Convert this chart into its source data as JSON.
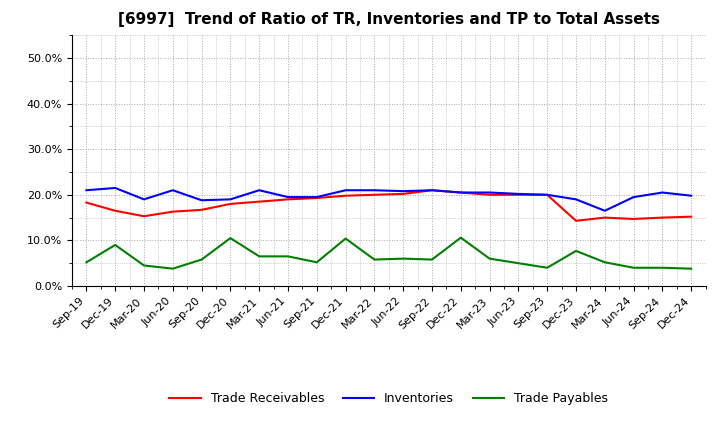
{
  "title": "[6997]  Trend of Ratio of TR, Inventories and TP to Total Assets",
  "x_labels": [
    "Sep-19",
    "Dec-19",
    "Mar-20",
    "Jun-20",
    "Sep-20",
    "Dec-20",
    "Mar-21",
    "Jun-21",
    "Sep-21",
    "Dec-21",
    "Mar-22",
    "Jun-22",
    "Sep-22",
    "Dec-22",
    "Mar-23",
    "Jun-23",
    "Sep-23",
    "Dec-23",
    "Mar-24",
    "Jun-24",
    "Sep-24",
    "Dec-24"
  ],
  "trade_receivables": [
    0.183,
    0.165,
    0.153,
    0.163,
    0.167,
    0.18,
    0.185,
    0.19,
    0.193,
    0.198,
    0.2,
    0.202,
    0.21,
    0.205,
    0.2,
    0.2,
    0.2,
    0.143,
    0.15,
    0.147,
    0.15,
    0.152
  ],
  "inventories": [
    0.21,
    0.215,
    0.19,
    0.21,
    0.188,
    0.19,
    0.21,
    0.195,
    0.195,
    0.21,
    0.21,
    0.208,
    0.21,
    0.205,
    0.205,
    0.202,
    0.2,
    0.19,
    0.165,
    0.195,
    0.205,
    0.198
  ],
  "trade_payables": [
    0.052,
    0.09,
    0.045,
    0.038,
    0.058,
    0.105,
    0.065,
    0.065,
    0.052,
    0.104,
    0.058,
    0.06,
    0.058,
    0.106,
    0.06,
    0.05,
    0.04,
    0.077,
    0.052,
    0.04,
    0.04,
    0.038
  ],
  "tr_color": "#ff0000",
  "inv_color": "#0000ff",
  "tp_color": "#008000",
  "ylim": [
    0.0,
    0.55
  ],
  "yticks": [
    0.0,
    0.1,
    0.2,
    0.3,
    0.4,
    0.5
  ],
  "background_color": "#ffffff",
  "grid_color": "#aaaaaa",
  "line_width": 1.5,
  "title_fontsize": 11,
  "tick_fontsize": 8,
  "legend_fontsize": 9
}
